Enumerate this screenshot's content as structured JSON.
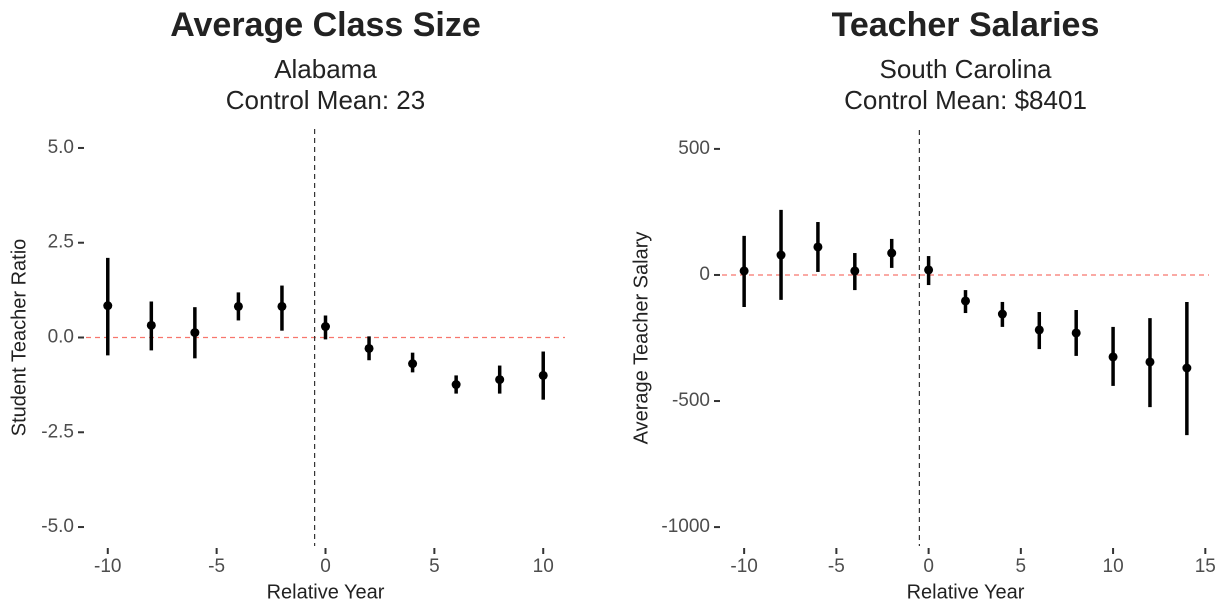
{
  "chart_data": [
    {
      "type": "pointrange",
      "title": "Average Class Size",
      "subtitle": [
        "Alabama",
        "Control Mean: 23"
      ],
      "x_label": "Relative Year",
      "y_label": "Student Teacher Ratio",
      "x": [
        -10,
        -8,
        -6,
        -4,
        -2,
        0,
        2,
        4,
        6,
        8,
        10
      ],
      "series": [
        {
          "color": "#000000",
          "values": [
            0.84,
            0.32,
            0.13,
            0.82,
            0.82,
            0.29,
            -0.29,
            -0.69,
            -1.24,
            -1.11,
            -1.0
          ],
          "lower": [
            -0.47,
            -0.34,
            -0.55,
            0.45,
            0.18,
            -0.05,
            -0.6,
            -0.92,
            -1.48,
            -1.48,
            -1.64
          ],
          "upper": [
            2.1,
            0.95,
            0.8,
            1.19,
            1.37,
            0.58,
            0.03,
            -0.4,
            -1.0,
            -0.74,
            -0.37
          ]
        }
      ],
      "xlim": [
        -11,
        11
      ],
      "xticks": [
        -10,
        -5,
        0,
        5,
        10
      ],
      "ylim": [
        -5.5,
        5.5
      ],
      "yticks": [
        {
          "value": -5,
          "label": "-5.0"
        },
        {
          "value": -2.5,
          "label": "-2.5"
        },
        {
          "value": 0,
          "label": "0.0"
        },
        {
          "value": 2.5,
          "label": "2.5"
        },
        {
          "value": 5,
          "label": "5.0"
        }
      ],
      "hline": 0,
      "hline_color": "#f8766d",
      "vline": -0.5
    },
    {
      "type": "pointrange",
      "title": "Teacher Salaries",
      "subtitle": [
        "South Carolina",
        "Control Mean: $8401"
      ],
      "x_label": "Relative Year",
      "y_label": "Average Teacher Salary",
      "x": [
        -10,
        -8,
        -6,
        -4,
        -2,
        0,
        2,
        4,
        6,
        8,
        10,
        12,
        14
      ],
      "series": [
        {
          "color": "#000000",
          "values": [
            16,
            79,
            111,
            16,
            87,
            20,
            -103,
            -155,
            -218,
            -230,
            -325,
            -345,
            -369
          ],
          "lower": [
            -127,
            -99,
            12,
            -60,
            28,
            -40,
            -151,
            -206,
            -294,
            -321,
            -440,
            -524,
            -635
          ],
          "upper": [
            155,
            258,
            210,
            87,
            143,
            75,
            -60,
            -107,
            -147,
            -139,
            -206,
            -171,
            -107
          ]
        }
      ],
      "xlim": [
        -11.2,
        15.2
      ],
      "xticks": [
        -10,
        -5,
        0,
        5,
        10,
        15
      ],
      "ylim": [
        -1075,
        575
      ],
      "yticks": [
        -1000,
        -500,
        0,
        500
      ],
      "hline": 0,
      "hline_color": "#f8766d",
      "vline": -0.5
    }
  ]
}
